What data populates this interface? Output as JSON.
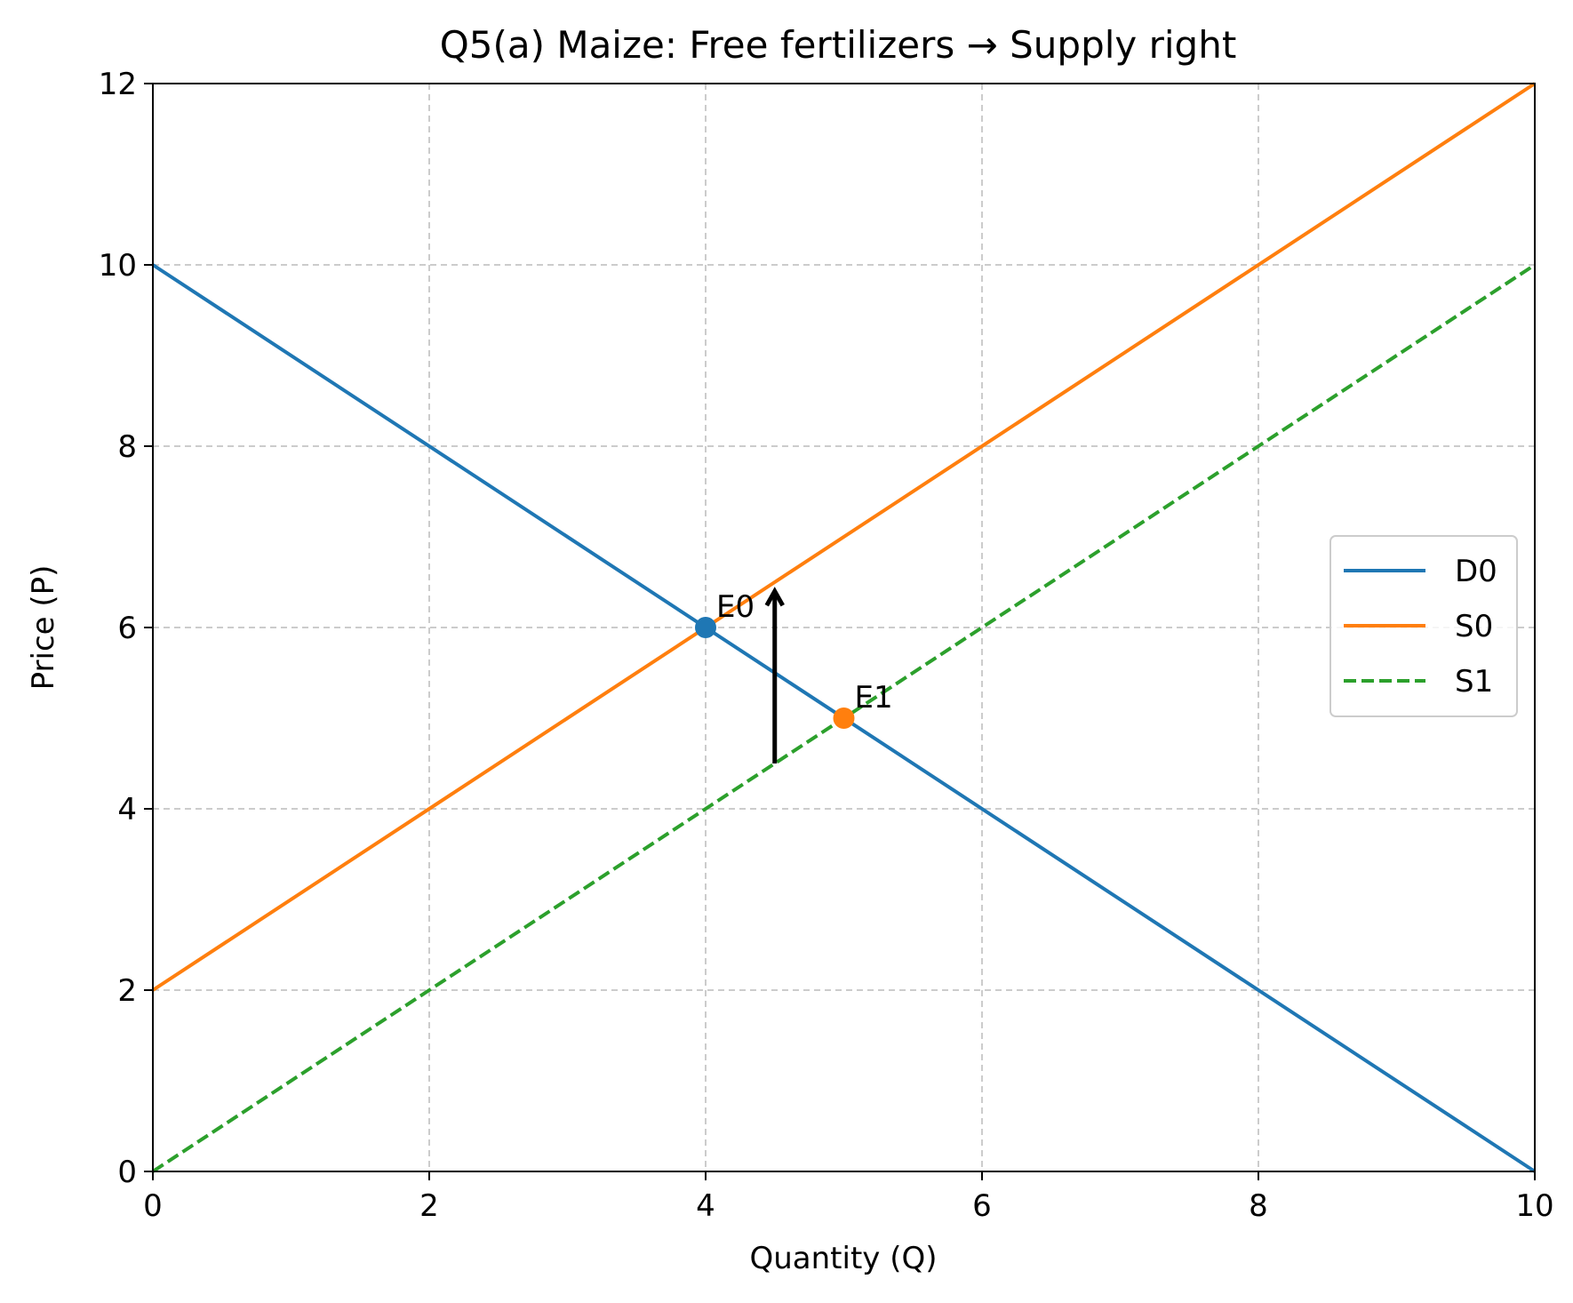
{
  "chart_data": {
    "type": "line",
    "title": "Q5(a) Maize: Free fertilizers → Supply right",
    "xlabel": "Quantity (Q)",
    "ylabel": "Price (P)",
    "xlim": [
      0,
      10
    ],
    "ylim": [
      0,
      12
    ],
    "xticks": [
      0,
      2,
      4,
      6,
      8,
      10
    ],
    "yticks": [
      0,
      2,
      4,
      6,
      8,
      10,
      12
    ],
    "x_tick_labels": [
      "0",
      "2",
      "4",
      "6",
      "8",
      "10"
    ],
    "y_tick_labels": [
      "0",
      "2",
      "4",
      "6",
      "8",
      "10",
      "12"
    ],
    "grid": true,
    "legend_position": "center-right",
    "series": [
      {
        "name": "D0",
        "color": "#1f77b4",
        "style": "solid",
        "x": [
          0,
          10
        ],
        "y": [
          10,
          0
        ]
      },
      {
        "name": "S0",
        "color": "#ff7f0e",
        "style": "solid",
        "x": [
          0,
          10
        ],
        "y": [
          2,
          12
        ]
      },
      {
        "name": "S1",
        "color": "#2ca02c",
        "style": "dashed",
        "x": [
          0,
          10
        ],
        "y": [
          0,
          10
        ]
      }
    ],
    "points": [
      {
        "label": "E0",
        "x": 4,
        "y": 6,
        "color": "#1f77b4"
      },
      {
        "label": "E1",
        "x": 5,
        "y": 5,
        "color": "#ff7f0e"
      }
    ],
    "arrow": {
      "x": 4.5,
      "y_from": 4.5,
      "y_to": 6.4,
      "color": "#000000"
    }
  }
}
